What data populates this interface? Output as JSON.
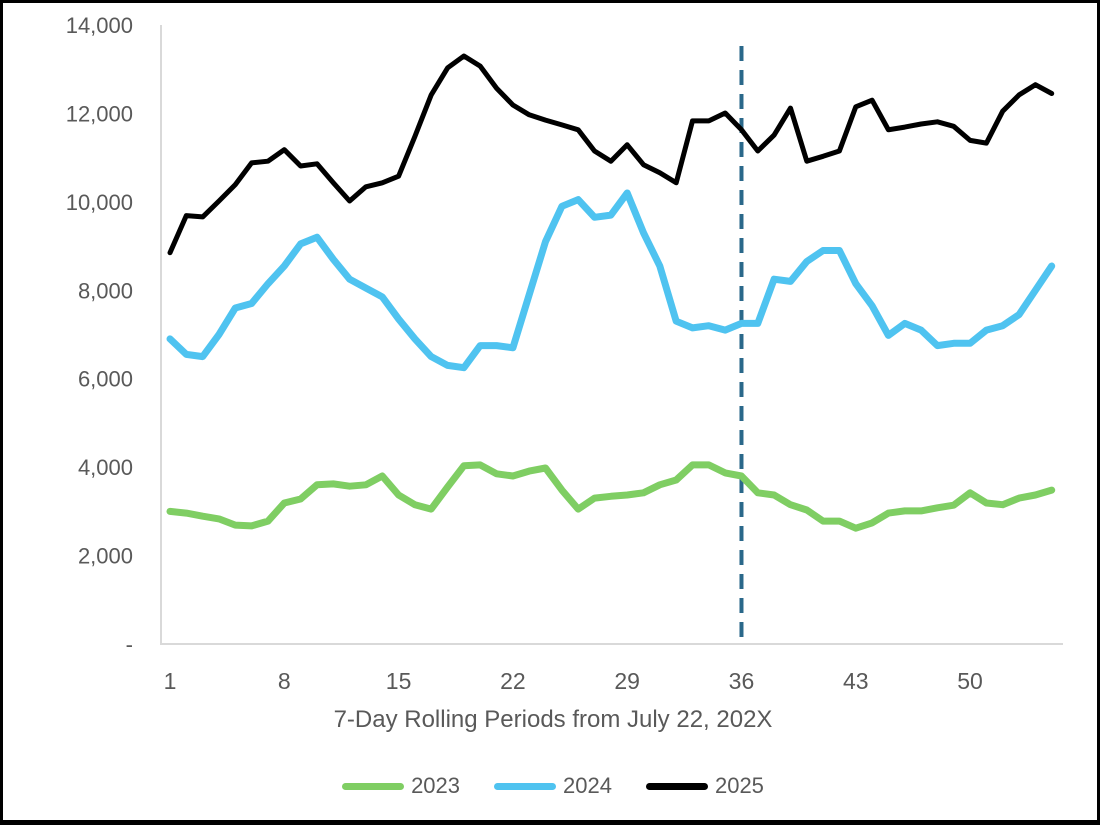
{
  "chart_data": {
    "type": "line",
    "title": "",
    "xlabel": "7-Day Rolling Periods from July 22, 202X",
    "ylabel": "",
    "ylim": [
      0,
      14000
    ],
    "xlim": [
      1,
      55
    ],
    "grid": false,
    "legend_position": "bottom-center",
    "axis_color": "#D9D9D9",
    "tick_text_color": "#595959",
    "yticks": [
      {
        "label": "14,000",
        "value": 14000
      },
      {
        "label": "12,000",
        "value": 12000
      },
      {
        "label": "10,000",
        "value": 10000
      },
      {
        "label": "8,000",
        "value": 8000
      },
      {
        "label": "6,000",
        "value": 6000
      },
      {
        "label": "4,000",
        "value": 4000
      },
      {
        "label": "2,000",
        "value": 2000
      },
      {
        "label": "-",
        "value": 0
      }
    ],
    "xticks": [
      1,
      8,
      15,
      22,
      29,
      36,
      43,
      50
    ],
    "x": [
      1,
      2,
      3,
      4,
      5,
      6,
      7,
      8,
      9,
      10,
      11,
      12,
      13,
      14,
      15,
      16,
      17,
      18,
      19,
      20,
      21,
      22,
      23,
      24,
      25,
      26,
      27,
      28,
      29,
      30,
      31,
      32,
      33,
      34,
      35,
      36,
      37,
      38,
      39,
      40,
      41,
      42,
      43,
      44,
      45,
      46,
      47,
      48,
      49,
      50,
      51,
      52,
      53,
      54,
      55
    ],
    "marker_line": {
      "x": 36,
      "color": "#2A688A",
      "style": "dashed"
    },
    "series": [
      {
        "name": "2023",
        "color": "#7FCE63",
        "values": [
          3000,
          2960,
          2890,
          2830,
          2690,
          2670,
          2780,
          3190,
          3280,
          3600,
          3620,
          3570,
          3600,
          3800,
          3370,
          3150,
          3050,
          3550,
          4030,
          4050,
          3850,
          3800,
          3910,
          3980,
          3480,
          3050,
          3300,
          3340,
          3370,
          3420,
          3600,
          3710,
          4050,
          4050,
          3870,
          3800,
          3420,
          3370,
          3150,
          3030,
          2780,
          2780,
          2620,
          2740,
          2960,
          3010,
          3010,
          3080,
          3140,
          3420,
          3190,
          3150,
          3300,
          3370,
          3480
        ]
      },
      {
        "name": "2024",
        "color": "#4FC3F0",
        "values": [
          6900,
          6550,
          6500,
          7000,
          7600,
          7700,
          8150,
          8550,
          9050,
          9200,
          8700,
          8250,
          8050,
          7850,
          7350,
          6900,
          6500,
          6300,
          6250,
          6750,
          6750,
          6700,
          7900,
          9100,
          9900,
          10050,
          9650,
          9700,
          10200,
          9300,
          8550,
          7300,
          7150,
          7200,
          7100,
          7250,
          7250,
          8250,
          8200,
          8650,
          8900,
          8900,
          8150,
          7650,
          6980,
          7250,
          7100,
          6750,
          6800,
          6800,
          7100,
          7200,
          7450,
          8000,
          8550
        ]
      },
      {
        "name": "2025",
        "color": "#000000",
        "values": [
          8850,
          9690,
          9660,
          10020,
          10390,
          10880,
          10920,
          11180,
          10810,
          10860,
          10430,
          10020,
          10340,
          10430,
          10580,
          11480,
          12420,
          13030,
          13300,
          13070,
          12570,
          12190,
          11970,
          11850,
          11740,
          11630,
          11150,
          10920,
          11290,
          10840,
          10660,
          10430,
          11830,
          11830,
          12010,
          11630,
          11150,
          11510,
          12120,
          10920,
          11030,
          11150,
          12150,
          12300,
          11630,
          11690,
          11760,
          11810,
          11710,
          11390,
          11330,
          12050,
          12420,
          12650,
          12450
        ]
      }
    ]
  }
}
